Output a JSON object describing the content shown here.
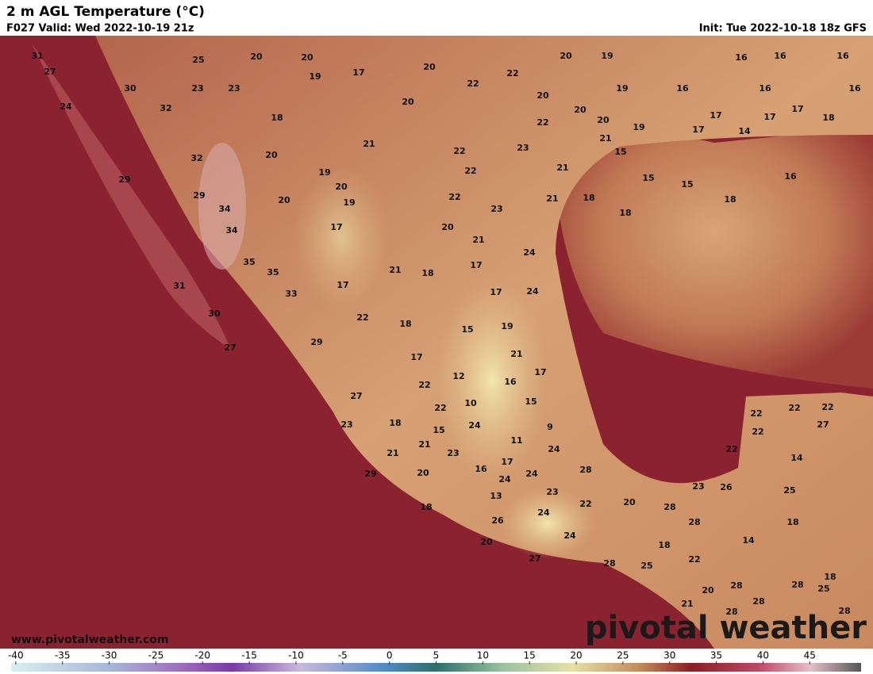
{
  "header": {
    "title": "2 m AGL Temperature (°C)",
    "valid": "F027 Valid: Wed 2022-10-19 21z",
    "init": "Init: Tue 2022-10-18 18z GFS"
  },
  "map": {
    "labels": [
      31,
      27,
      25,
      20,
      20,
      20,
      20,
      19,
      16,
      16,
      16,
      19,
      17,
      22,
      22,
      20,
      19,
      16,
      16,
      16,
      30,
      23,
      23,
      24,
      32,
      18,
      20,
      22,
      20,
      20,
      17,
      17,
      17,
      18,
      19,
      17,
      14,
      21,
      15,
      21,
      22,
      23,
      20,
      32,
      19,
      21,
      22,
      15,
      15,
      16,
      29,
      20,
      29,
      20,
      19,
      22,
      21,
      18,
      18,
      18,
      34,
      23,
      17,
      34,
      20,
      21,
      24,
      35,
      35,
      17,
      21,
      18,
      17,
      31,
      33,
      17,
      24,
      30,
      22,
      18,
      15,
      19,
      27,
      29,
      21,
      17,
      17,
      12,
      16,
      22,
      27,
      10,
      15,
      22,
      22,
      22,
      22,
      22,
      27,
      23,
      18,
      24,
      15,
      9,
      11,
      24,
      21,
      21,
      23,
      22,
      14,
      17,
      16,
      24,
      28,
      29,
      20,
      24,
      23,
      26,
      25,
      13,
      23,
      20,
      22,
      28,
      18,
      24,
      28,
      18,
      26,
      14,
      24,
      20,
      18,
      22,
      27,
      28,
      25,
      18,
      20,
      28,
      28,
      25,
      28,
      21,
      28,
      28
    ]
  },
  "colorbar": {
    "lim": [
      -40.5,
      50.5
    ],
    "ticks": [
      -40,
      -35,
      -30,
      -25,
      -20,
      -15,
      -10,
      -5,
      0,
      5,
      10,
      15,
      20,
      25,
      30,
      35,
      40,
      45
    ]
  },
  "footer": {
    "url": "www.pivotalweather.com",
    "logo": "pivotal weather"
  }
}
